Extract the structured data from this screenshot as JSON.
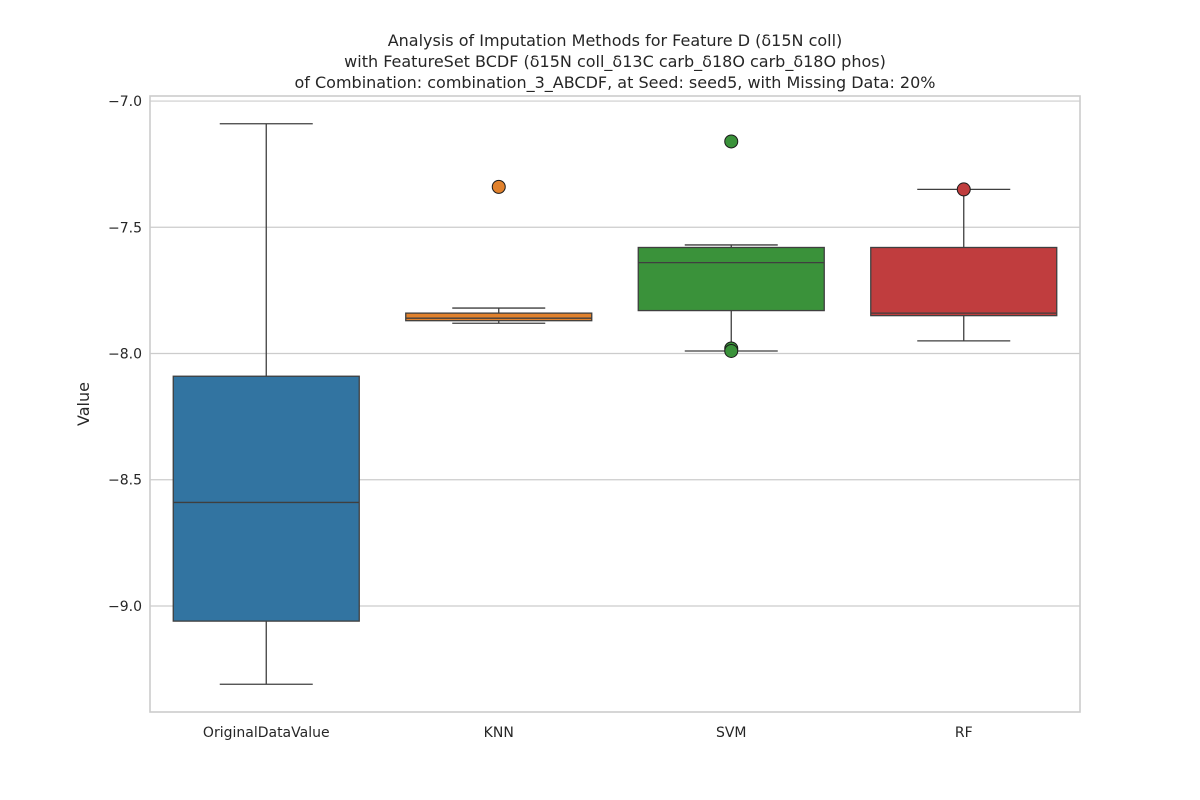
{
  "chart_data": {
    "type": "box",
    "title_lines": [
      "Analysis of Imputation Methods for Feature D (δ15N coll)",
      "with FeatureSet BCDF (δ15N coll_δ13C carb_δ18O carb_δ18O phos)",
      "of Combination: combination_3_ABCDF, at Seed: seed5, with Missing Data: 20%"
    ],
    "xlabel": "",
    "ylabel": "Value",
    "ylim": [
      -9.42,
      -6.98
    ],
    "yticks": [
      -7.0,
      -7.5,
      -8.0,
      -8.5,
      -9.0
    ],
    "ytick_labels": [
      "−7.0",
      "−7.5",
      "−8.0",
      "−8.5",
      "−9.0"
    ],
    "grid": "horizontal",
    "categories": [
      "OriginalDataValue",
      "KNN",
      "SVM",
      "RF"
    ],
    "boxes": [
      {
        "name": "OriginalDataValue",
        "color": "#3274a1",
        "whisker_low": -9.31,
        "q1": -9.06,
        "median": -8.59,
        "q3": -8.09,
        "whisker_high": -7.09,
        "outliers": []
      },
      {
        "name": "KNN",
        "color": "#e1812c",
        "whisker_low": -7.88,
        "q1": -7.87,
        "median": -7.86,
        "q3": -7.84,
        "whisker_high": -7.82,
        "outliers": [
          -7.34
        ]
      },
      {
        "name": "SVM",
        "color": "#3a923a",
        "whisker_low": -7.99,
        "q1": -7.83,
        "median": -7.64,
        "q3": -7.58,
        "whisker_high": -7.57,
        "outliers": [
          -7.16,
          -7.98,
          -7.99
        ]
      },
      {
        "name": "RF",
        "color": "#c03d3e",
        "whisker_low": -7.95,
        "q1": -7.85,
        "median": -7.84,
        "q3": -7.58,
        "whisker_high": -7.35,
        "outliers": [
          -7.35
        ]
      }
    ]
  }
}
